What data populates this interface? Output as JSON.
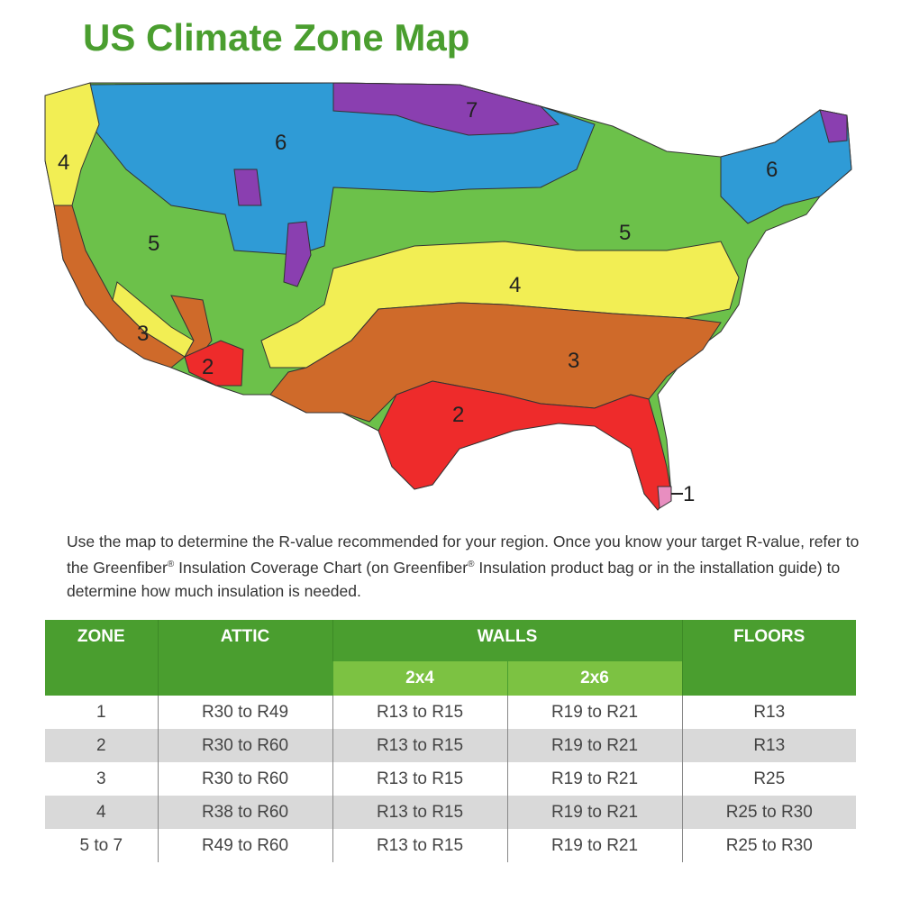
{
  "title": "US Climate Zone Map",
  "map": {
    "zone_labels": [
      "7",
      "6",
      "6",
      "4",
      "5",
      "5",
      "4",
      "3",
      "3",
      "2",
      "2",
      "1"
    ],
    "colors": {
      "zone1": "#e88ec0",
      "zone2": "#ee2b2b",
      "zone3": "#cf6a2a",
      "zone4": "#f2ee54",
      "zone5": "#6cc14a",
      "zone6": "#2f9bd6",
      "zone7": "#8a3fb0"
    }
  },
  "description": {
    "part1": "Use the map to determine the R-value recommended for your region. Once you know your target R-value, refer to the Greenfiber",
    "reg1": "®",
    "part2": " Insulation Coverage Chart (on Greenfiber",
    "reg2": "®",
    "part3": " Insulation product bag or in the installation guide) to determine how much insulation is needed."
  },
  "table": {
    "headers": {
      "zone": "ZONE",
      "attic": "ATTIC",
      "walls": "WALLS",
      "floors": "FLOORS",
      "walls_2x4": "2x4",
      "walls_2x6": "2x6"
    },
    "rows": [
      {
        "zone": "1",
        "attic": "R30 to R49",
        "w2x4": "R13 to R15",
        "w2x6": "R19 to R21",
        "floors": "R13"
      },
      {
        "zone": "2",
        "attic": "R30 to R60",
        "w2x4": "R13 to R15",
        "w2x6": "R19 to R21",
        "floors": "R13"
      },
      {
        "zone": "3",
        "attic": "R30 to R60",
        "w2x4": "R13 to R15",
        "w2x6": "R19 to R21",
        "floors": "R25"
      },
      {
        "zone": "4",
        "attic": "R38 to R60",
        "w2x4": "R13 to R15",
        "w2x6": "R19 to R21",
        "floors": "R25 to R30"
      },
      {
        "zone": "5 to 7",
        "attic": "R49 to R60",
        "w2x4": "R13 to R15",
        "w2x6": "R19 to R21",
        "floors": "R25 to R30"
      }
    ]
  }
}
